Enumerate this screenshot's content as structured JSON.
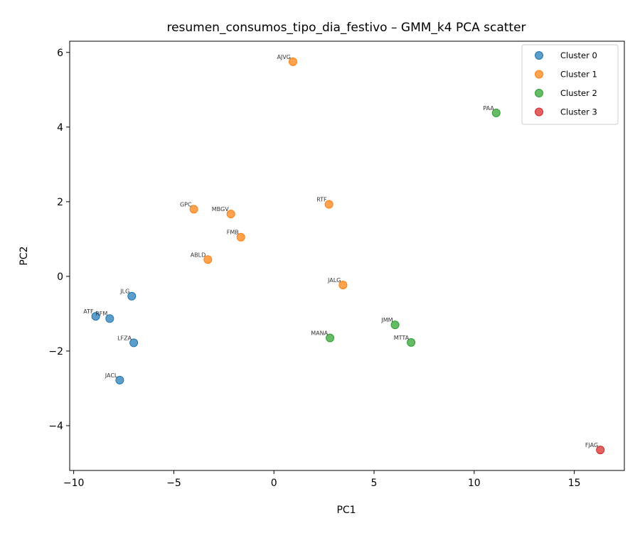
{
  "chart_data": {
    "type": "scatter",
    "title": "resumen_consumos_tipo_dia_festivo – GMM_k4 PCA scatter",
    "xlabel": "PC1",
    "ylabel": "PC2",
    "xlim": [
      -10.2,
      17.5
    ],
    "ylim": [
      -5.2,
      6.3
    ],
    "x_ticks": [
      -10,
      -5,
      0,
      5,
      10,
      15
    ],
    "y_ticks": [
      -4,
      -2,
      0,
      2,
      4,
      6
    ],
    "x_tick_labels": [
      "−10",
      "−5",
      "0",
      "5",
      "10",
      "15"
    ],
    "y_tick_labels": [
      "−4",
      "−2",
      "0",
      "2",
      "4",
      "6"
    ],
    "grid": false,
    "legend_position": "top-right",
    "series": [
      {
        "name": "Cluster 0",
        "color": "#1f77b4",
        "points": [
          {
            "label": "JLG",
            "x": -7.1,
            "y": -0.53
          },
          {
            "label": "ATF",
            "x": -8.9,
            "y": -1.07
          },
          {
            "label": "RFM",
            "x": -8.2,
            "y": -1.13
          },
          {
            "label": "LFZA",
            "x": -7.0,
            "y": -1.78
          },
          {
            "label": "JACL",
            "x": -7.7,
            "y": -2.78
          }
        ]
      },
      {
        "name": "Cluster 1",
        "color": "#ff7f0e",
        "points": [
          {
            "label": "AJVG",
            "x": 0.95,
            "y": 5.75
          },
          {
            "label": "GPC",
            "x": -4.0,
            "y": 1.8
          },
          {
            "label": "MBGV",
            "x": -2.15,
            "y": 1.67
          },
          {
            "label": "FMB",
            "x": -1.65,
            "y": 1.05
          },
          {
            "label": "RTF",
            "x": 2.75,
            "y": 1.93
          },
          {
            "label": "ABLD",
            "x": -3.3,
            "y": 0.45
          },
          {
            "label": "JALG",
            "x": 3.45,
            "y": -0.23
          }
        ]
      },
      {
        "name": "Cluster 2",
        "color": "#2ca02c",
        "points": [
          {
            "label": "PAA",
            "x": 11.1,
            "y": 4.38
          },
          {
            "label": "JMM",
            "x": 6.05,
            "y": -1.3
          },
          {
            "label": "MANA",
            "x": 2.8,
            "y": -1.65
          },
          {
            "label": "MTTA",
            "x": 6.85,
            "y": -1.77
          }
        ]
      },
      {
        "name": "Cluster 3",
        "color": "#d62728",
        "points": [
          {
            "label": "FJAG",
            "x": 16.3,
            "y": -4.65
          }
        ]
      }
    ]
  }
}
